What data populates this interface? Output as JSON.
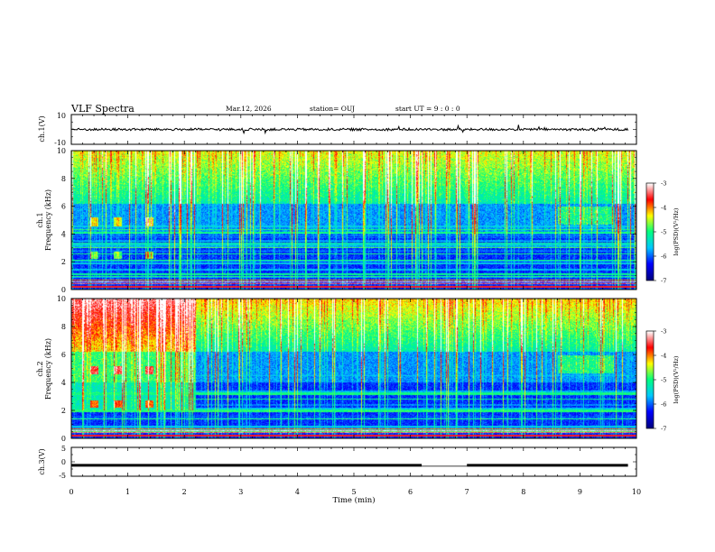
{
  "header": {
    "title": "VLF Spectra",
    "date": "Mar.12, 2026",
    "station": "station= OUJ",
    "start": "start  UT  =   9 : 0  : 0"
  },
  "chart_data": [
    {
      "type": "line",
      "name": "ch1-waveform",
      "ylabel": "ch.1(V)",
      "ylim": [
        -10,
        10
      ],
      "yticks": [
        "10",
        "-10"
      ],
      "baseline": 0
    },
    {
      "type": "heatmap",
      "name": "ch1-spectrogram",
      "ylabel_channel": "ch.1",
      "ylabel": "Frequency  (kHz)",
      "ylim": [
        0,
        10
      ],
      "yticks": [
        "0",
        "2",
        "4",
        "6",
        "8",
        "10"
      ],
      "xlim": [
        0,
        10
      ],
      "colorbar": {
        "label": "log(PSD)(V²/Hz)",
        "range": [
          -7,
          -3
        ],
        "ticks": [
          "-3",
          "-4",
          "-5",
          "-6",
          "-7"
        ]
      }
    },
    {
      "type": "heatmap",
      "name": "ch2-spectrogram",
      "ylabel_channel": "ch.2",
      "ylabel": "Frequency  (kHz)",
      "ylim": [
        0,
        10
      ],
      "yticks": [
        "0",
        "2",
        "4",
        "6",
        "8",
        "10"
      ],
      "xlim": [
        0,
        10
      ],
      "colorbar": {
        "label": "log(PSD)(V²/Hz)",
        "range": [
          -7,
          -3
        ],
        "ticks": [
          "-3",
          "-4",
          "-5",
          "-6",
          "-7"
        ]
      }
    },
    {
      "type": "line",
      "name": "ch3-level",
      "ylabel": "ch.3(V)",
      "ylim": [
        -5,
        5
      ],
      "yticks": [
        "5",
        "0",
        "-5"
      ],
      "baseline": -1.2,
      "gap_min": [
        6.2,
        7.0
      ]
    }
  ],
  "xaxis": {
    "label": "Time  (min)",
    "range": [
      0,
      10
    ],
    "ticks": [
      "0",
      "1",
      "2",
      "3",
      "4",
      "5",
      "6",
      "7",
      "8",
      "9",
      "10"
    ]
  },
  "colors": {
    "cmap": [
      "#000080",
      "#0000ff",
      "#00c8ff",
      "#00ff80",
      "#ffff00",
      "#ff0000",
      "#ffffff"
    ]
  }
}
